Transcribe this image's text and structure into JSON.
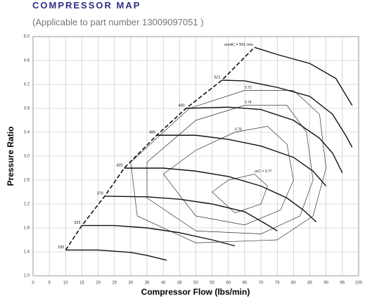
{
  "title": "COMPRESSOR MAP",
  "subtitle": "(Applicable to part number 13009097051 )",
  "chart_data": {
    "type": "line",
    "x_label": "Compressor Flow (lbs/min)",
    "y_label": "Pressure Ratio",
    "xlim": [
      0,
      100
    ],
    "ylim": [
      1,
      5
    ],
    "xticks": [
      0,
      5,
      10,
      15,
      20,
      25,
      30,
      35,
      40,
      45,
      50,
      55,
      60,
      65,
      70,
      75,
      80,
      85,
      90,
      95,
      100
    ],
    "yticks": [
      {
        "value": 1,
        "label": "1.0"
      },
      1.4,
      1.8,
      2.2,
      2.6,
      {
        "value": 3,
        "label": "3.0"
      },
      3.4,
      3.8,
      4.2,
      4.6,
      {
        "value": 5,
        "label": "5.0"
      }
    ],
    "grid": true,
    "color": "#111111",
    "series": [
      {
        "name": "230",
        "x": [
          10,
          20,
          30,
          35,
          41
        ],
        "y": [
          1.43,
          1.43,
          1.39,
          1.34,
          1.26
        ]
      },
      {
        "name": "333",
        "x": [
          15,
          25,
          35,
          45,
          55,
          62
        ],
        "y": [
          1.84,
          1.84,
          1.8,
          1.72,
          1.6,
          1.5
        ]
      },
      {
        "name": "370",
        "x": [
          22,
          35,
          45,
          55,
          65,
          72,
          75
        ],
        "y": [
          2.33,
          2.32,
          2.28,
          2.2,
          2.07,
          1.85,
          1.75
        ]
      },
      {
        "name": "420",
        "x": [
          28,
          40,
          50,
          60,
          70,
          78,
          83,
          87
        ],
        "y": [
          2.8,
          2.8,
          2.75,
          2.66,
          2.5,
          2.3,
          2.1,
          1.9
        ]
      },
      {
        "name": "480",
        "x": [
          38,
          50,
          60,
          70,
          80,
          86,
          90
        ],
        "y": [
          3.35,
          3.35,
          3.28,
          3.17,
          2.98,
          2.75,
          2.5
        ]
      },
      {
        "name": "490",
        "x": [
          47,
          60,
          70,
          80,
          88,
          92,
          95
        ],
        "y": [
          3.8,
          3.82,
          3.78,
          3.6,
          3.3,
          3.05,
          2.72
        ]
      },
      {
        "name": "521",
        "x": [
          58,
          65,
          75,
          85,
          92,
          96,
          98
        ],
        "y": [
          4.27,
          4.26,
          4.15,
          4.0,
          3.7,
          3.35,
          3.15
        ]
      },
      {
        "name": "uredC = 561 m/s",
        "x": [
          68,
          75,
          85,
          93,
          98
        ],
        "y": [
          4.82,
          4.7,
          4.55,
          4.3,
          3.85
        ]
      }
    ],
    "contours": [
      {
        "name": "uoC = 0.77",
        "x": [
          55,
          60,
          68,
          72,
          70,
          62,
          55
        ],
        "y": [
          2.4,
          2.6,
          2.7,
          2.5,
          2.2,
          2.05,
          2.4
        ]
      },
      {
        "name": "0.76",
        "x": [
          40,
          50,
          62,
          72,
          78,
          80,
          76,
          65,
          50,
          40
        ],
        "y": [
          2.7,
          3.1,
          3.4,
          3.5,
          3.2,
          2.6,
          2.1,
          1.85,
          2.0,
          2.7
        ]
      },
      {
        "name": "0.74",
        "x": [
          35,
          50,
          65,
          78,
          84,
          86,
          82,
          70,
          50,
          35,
          35
        ],
        "y": [
          2.9,
          3.6,
          3.85,
          3.85,
          3.4,
          2.6,
          2.0,
          1.7,
          1.75,
          2.3,
          2.9
        ]
      },
      {
        "name": "0.72",
        "x": [
          30,
          48,
          65,
          80,
          88,
          90,
          86,
          75,
          50,
          32,
          30
        ],
        "y": [
          2.9,
          3.8,
          4.1,
          4.1,
          3.7,
          2.8,
          2.0,
          1.6,
          1.55,
          2.0,
          2.9
        ]
      }
    ]
  }
}
